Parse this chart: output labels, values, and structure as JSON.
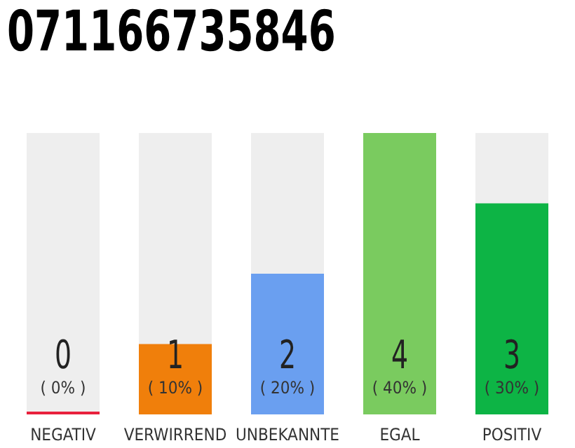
{
  "chart_data": {
    "type": "bar",
    "title": "071166735846",
    "categories": [
      "NEGATIV",
      "VERWIRREND",
      "UNBEKANNTE",
      "EGAL",
      "POSITIV"
    ],
    "values": [
      0,
      1,
      2,
      4,
      3
    ],
    "colors": [
      "#e8203c",
      "#f07f0b",
      "#6a9ff0",
      "#7acb5f",
      "#0db445"
    ],
    "ylim": [
      0,
      4
    ],
    "tick_labels": "x",
    "data_labels": true,
    "annotations": [
      "( 0% )",
      "( 10% )",
      "( 20% )",
      "( 40% )",
      "( 30% )"
    ]
  }
}
